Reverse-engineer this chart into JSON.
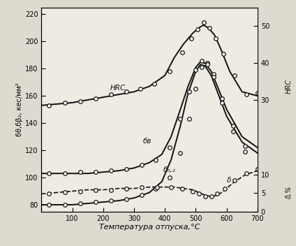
{
  "xlabel": "Температура отпуска,°C",
  "ylabel_left": "бθ,бβ₂, кес/мм²",
  "xlim": [
    0,
    700
  ],
  "ylim_left": [
    75,
    225
  ],
  "xticks": [
    0,
    100,
    200,
    300,
    400,
    500,
    600,
    700
  ],
  "yticks_left": [
    80,
    100,
    120,
    140,
    160,
    180,
    200,
    220
  ],
  "HRC_line_x": [
    0,
    50,
    100,
    150,
    200,
    250,
    300,
    350,
    400,
    430,
    460,
    490,
    510,
    525,
    540,
    560,
    580,
    610,
    650,
    700
  ],
  "HRC_line_y": [
    153,
    154,
    155,
    157,
    159,
    161,
    163,
    167,
    175,
    188,
    198,
    206,
    210,
    212,
    210,
    205,
    195,
    178,
    163,
    160
  ],
  "HRC_scatter_x": [
    25,
    75,
    125,
    175,
    225,
    275,
    320,
    365,
    415,
    455,
    485,
    505,
    525,
    545,
    565,
    590,
    625,
    665,
    700
  ],
  "HRC_scatter_y": [
    153,
    155,
    156,
    158,
    161,
    163,
    165,
    169,
    178,
    192,
    202,
    209,
    214,
    210,
    202,
    191,
    175,
    161,
    162
  ],
  "sigma_b_line_x": [
    0,
    50,
    100,
    150,
    200,
    250,
    300,
    350,
    390,
    420,
    450,
    475,
    500,
    515,
    530,
    550,
    570,
    600,
    650,
    700
  ],
  "sigma_b_line_y": [
    103,
    103,
    103,
    103,
    104,
    105,
    107,
    111,
    117,
    130,
    150,
    167,
    181,
    185,
    184,
    178,
    167,
    150,
    130,
    122
  ],
  "sigma_b_scatter_x": [
    25,
    75,
    125,
    175,
    225,
    275,
    325,
    370,
    415,
    450,
    478,
    500,
    520,
    538,
    558,
    585,
    620,
    660
  ],
  "sigma_b_scatter_y": [
    103,
    103,
    104,
    104,
    105,
    106,
    109,
    113,
    122,
    143,
    163,
    179,
    186,
    184,
    176,
    158,
    138,
    123
  ],
  "sigma_02_line_x": [
    0,
    50,
    100,
    150,
    200,
    250,
    300,
    350,
    390,
    420,
    450,
    475,
    500,
    515,
    530,
    550,
    570,
    600,
    650,
    700
  ],
  "sigma_02_line_y": [
    80,
    80,
    80,
    81,
    82,
    83,
    85,
    89,
    97,
    113,
    138,
    162,
    178,
    183,
    182,
    175,
    163,
    145,
    126,
    118
  ],
  "sigma_02_scatter_x": [
    25,
    75,
    125,
    175,
    225,
    275,
    325,
    370,
    415,
    450,
    478,
    500,
    520,
    538,
    558,
    585,
    620,
    660
  ],
  "sigma_02_scatter_y": [
    80,
    80,
    81,
    82,
    83,
    84,
    87,
    92,
    100,
    118,
    143,
    165,
    181,
    183,
    174,
    155,
    134,
    119
  ],
  "delta_line_x": [
    0,
    50,
    100,
    150,
    200,
    250,
    300,
    350,
    400,
    430,
    460,
    490,
    510,
    530,
    550,
    570,
    590,
    620,
    660,
    700
  ],
  "delta_line_y": [
    88,
    89,
    90,
    91,
    91,
    92,
    92,
    93,
    93,
    93,
    92,
    91,
    89,
    87,
    86,
    87,
    90,
    96,
    102,
    105
  ],
  "delta_scatter_x": [
    25,
    75,
    125,
    175,
    225,
    275,
    325,
    375,
    420,
    455,
    490,
    510,
    530,
    550,
    570,
    595,
    625,
    665,
    700
  ],
  "delta_scatter_y": [
    88,
    89,
    90,
    91,
    91,
    92,
    93,
    93,
    93,
    92,
    90,
    88,
    86,
    86,
    88,
    92,
    98,
    103,
    106
  ],
  "right_yticks_hrc": [
    30,
    40,
    50
  ],
  "right_ytick_vals_hrc": [
    153,
    170.3,
    187.7
  ],
  "right_yticks_delta": [
    0,
    5,
    10
  ],
  "right_ytick_vals_delta": [
    80,
    83.6,
    87.3
  ],
  "bg_color": "#dedad0",
  "plot_bg": "#eeebe2",
  "line_color": "#111111",
  "scatter_color": "#111111",
  "fontsize_labels": 8,
  "fontsize_ticks": 7
}
